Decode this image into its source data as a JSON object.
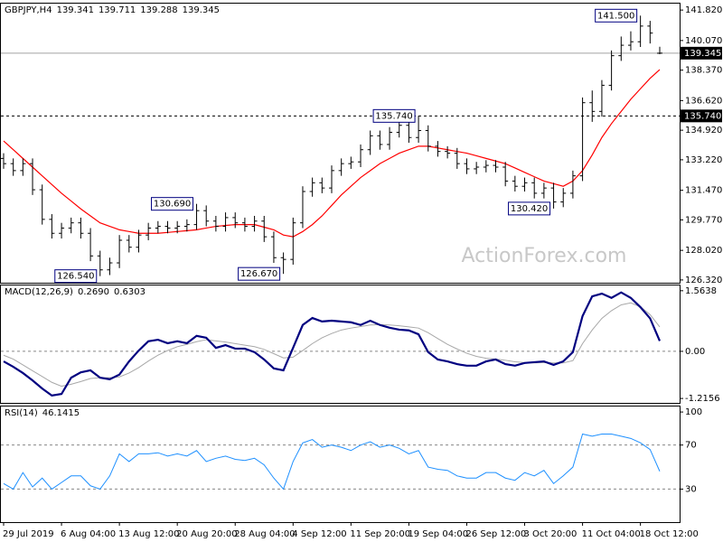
{
  "chart_data": [
    {
      "type": "ohlc",
      "title": "GBPJPY,H4",
      "color": "#000000",
      "open": [
        133.3,
        133.0,
        132.6,
        133.0,
        131.5,
        129.8,
        129.0,
        129.3,
        129.6,
        129.0,
        127.7,
        126.9,
        127.3,
        128.6,
        128.2,
        128.9,
        129.3,
        129.4,
        129.3,
        129.4,
        129.5,
        130.3,
        129.7,
        129.4,
        129.9,
        129.6,
        129.4,
        129.7,
        128.8,
        127.6,
        127.5,
        129.6,
        131.4,
        131.9,
        131.6,
        132.6,
        133.0,
        133.1,
        133.8,
        134.6,
        134.1,
        134.8,
        135.2,
        134.5,
        134.9,
        134.0,
        133.7,
        133.6,
        133.0,
        132.7,
        132.8,
        132.9,
        132.8,
        132.0,
        131.7,
        131.9,
        131.3,
        131.6,
        130.8,
        131.3,
        132.3,
        136.5,
        136.0,
        137.5,
        139.2,
        139.8,
        140.0,
        140.9,
        139.341
      ],
      "high": [
        133.6,
        133.3,
        133.3,
        133.3,
        131.8,
        130.1,
        129.6,
        129.9,
        129.9,
        129.3,
        128.0,
        127.6,
        128.9,
        128.9,
        129.2,
        129.6,
        129.7,
        129.7,
        129.7,
        129.8,
        130.69,
        130.6,
        130.0,
        130.2,
        130.2,
        129.9,
        130.0,
        130.0,
        129.1,
        127.9,
        129.9,
        131.7,
        132.2,
        132.2,
        132.9,
        133.3,
        133.4,
        134.1,
        134.9,
        134.9,
        135.1,
        135.5,
        135.5,
        135.74,
        135.2,
        134.3,
        134.0,
        133.9,
        133.3,
        133.1,
        133.2,
        133.2,
        133.1,
        132.3,
        132.2,
        132.2,
        131.9,
        131.9,
        131.6,
        132.6,
        136.8,
        137.2,
        137.8,
        139.5,
        140.3,
        140.6,
        141.5,
        141.2,
        139.711
      ],
      "low": [
        132.7,
        132.3,
        132.3,
        131.2,
        129.5,
        128.7,
        128.7,
        129.0,
        128.7,
        127.4,
        126.54,
        126.6,
        127.0,
        127.9,
        127.9,
        128.6,
        129.0,
        129.0,
        129.0,
        129.1,
        129.2,
        129.4,
        129.1,
        129.1,
        129.3,
        129.1,
        129.1,
        128.5,
        127.3,
        126.67,
        127.2,
        129.3,
        131.1,
        131.3,
        131.3,
        132.3,
        132.7,
        132.8,
        133.5,
        133.8,
        133.8,
        134.5,
        134.2,
        134.2,
        133.7,
        133.4,
        133.3,
        132.7,
        132.4,
        132.4,
        132.5,
        132.5,
        131.7,
        131.4,
        131.4,
        131.0,
        131.0,
        130.42,
        130.5,
        131.0,
        132.0,
        135.4,
        135.7,
        137.2,
        138.9,
        139.5,
        139.7,
        139.9,
        139.288
      ],
      "close": [
        133.0,
        132.6,
        133.0,
        131.5,
        129.8,
        129.0,
        129.3,
        129.6,
        129.0,
        127.7,
        126.9,
        127.3,
        128.6,
        128.2,
        128.9,
        129.3,
        129.4,
        129.3,
        129.4,
        129.5,
        130.3,
        129.7,
        129.4,
        129.9,
        129.6,
        129.4,
        129.7,
        128.8,
        127.6,
        127.5,
        129.6,
        131.4,
        131.9,
        131.6,
        132.6,
        133.0,
        133.1,
        133.8,
        134.6,
        134.1,
        134.8,
        135.2,
        134.5,
        134.9,
        134.0,
        133.7,
        133.6,
        133.0,
        132.7,
        132.8,
        132.9,
        132.8,
        132.0,
        131.7,
        131.9,
        131.3,
        131.6,
        130.8,
        131.3,
        132.3,
        136.5,
        136.0,
        137.5,
        139.2,
        139.8,
        140.0,
        140.9,
        140.5,
        139.345
      ],
      "ma": {
        "color": "#ff0000",
        "values": [
          134.3,
          133.8,
          133.3,
          132.8,
          132.3,
          131.8,
          131.3,
          130.85,
          130.4,
          130.0,
          129.6,
          129.4,
          129.2,
          129.1,
          129.0,
          129.0,
          129.0,
          129.05,
          129.1,
          129.15,
          129.2,
          129.3,
          129.4,
          129.45,
          129.5,
          129.5,
          129.5,
          129.35,
          129.2,
          128.9,
          128.8,
          129.1,
          129.5,
          130.0,
          130.6,
          131.2,
          131.7,
          132.2,
          132.6,
          133.0,
          133.3,
          133.6,
          133.8,
          134.0,
          134.0,
          133.9,
          133.8,
          133.7,
          133.6,
          133.45,
          133.3,
          133.15,
          133.0,
          132.75,
          132.5,
          132.25,
          132.0,
          131.85,
          131.7,
          132.0,
          132.6,
          133.5,
          134.5,
          135.3,
          136.0,
          136.7,
          137.3,
          137.9,
          138.4
        ]
      },
      "ylim": [
        126.16,
        142.19
      ],
      "yticks": [
        {
          "value": 141.82,
          "label": "141.820"
        },
        {
          "value": 140.07,
          "label": "140.070"
        },
        {
          "value": 138.37,
          "label": "138.370"
        },
        {
          "value": 136.62,
          "label": "136.620"
        },
        {
          "value": 134.92,
          "label": "134.920"
        },
        {
          "value": 133.22,
          "label": "133.220"
        },
        {
          "value": 131.47,
          "label": "131.470"
        },
        {
          "value": 129.77,
          "label": "129.770"
        },
        {
          "value": 128.02,
          "label": "128.020"
        },
        {
          "value": 126.32,
          "label": "126.320"
        }
      ],
      "annotations": [
        {
          "value": 141.5,
          "label": "141.500"
        },
        {
          "value": 135.74,
          "label": "135.740"
        },
        {
          "value": 130.69,
          "label": "130.690"
        },
        {
          "value": 130.42,
          "label": "130.420"
        },
        {
          "value": 126.54,
          "label": "126.540"
        },
        {
          "value": 126.67,
          "label": "126.670"
        }
      ],
      "last_price": {
        "value": 139.345,
        "label": "139.345"
      },
      "level": {
        "value": 135.74,
        "label": "135.740"
      },
      "watermark": "ActionForex.com"
    },
    {
      "type": "macd",
      "title": "MACD(12,26,9)",
      "series": [
        {
          "color": "#000080",
          "values": [
            -0.26,
            -0.4,
            -0.56,
            -0.75,
            -0.96,
            -1.14,
            -1.1,
            -0.68,
            -0.54,
            -0.49,
            -0.68,
            -0.72,
            -0.6,
            -0.26,
            0.02,
            0.26,
            0.3,
            0.21,
            0.26,
            0.21,
            0.4,
            0.35,
            0.09,
            0.16,
            0.07,
            0.07,
            -0.02,
            -0.21,
            -0.44,
            -0.49,
            0.09,
            0.68,
            0.86,
            0.77,
            0.79,
            0.77,
            0.75,
            0.68,
            0.79,
            0.68,
            0.61,
            0.56,
            0.54,
            0.44,
            -0.02,
            -0.21,
            -0.26,
            -0.33,
            -0.37,
            -0.37,
            -0.26,
            -0.21,
            -0.33,
            -0.37,
            -0.3,
            -0.28,
            -0.26,
            -0.35,
            -0.26,
            -0.02,
            0.91,
            1.42,
            1.49,
            1.38,
            1.52,
            1.38,
            1.14,
            0.85,
            0.269
          ]
        },
        {
          "color": "#a8a8a8",
          "values": [
            -0.1,
            -0.2,
            -0.35,
            -0.5,
            -0.65,
            -0.8,
            -0.9,
            -0.85,
            -0.78,
            -0.7,
            -0.68,
            -0.68,
            -0.66,
            -0.56,
            -0.42,
            -0.25,
            -0.1,
            0.02,
            0.12,
            0.18,
            0.25,
            0.3,
            0.27,
            0.24,
            0.2,
            0.16,
            0.12,
            0.05,
            -0.06,
            -0.17,
            -0.15,
            0.02,
            0.2,
            0.35,
            0.46,
            0.55,
            0.6,
            0.64,
            0.68,
            0.69,
            0.68,
            0.66,
            0.63,
            0.6,
            0.48,
            0.33,
            0.18,
            0.06,
            -0.05,
            -0.13,
            -0.18,
            -0.2,
            -0.23,
            -0.27,
            -0.29,
            -0.3,
            -0.29,
            -0.3,
            -0.3,
            -0.24,
            0.2,
            0.55,
            0.85,
            1.05,
            1.2,
            1.25,
            1.15,
            0.95,
            0.6303
          ]
        }
      ],
      "readout": [
        {
          "value": 0.269,
          "label": "0.2690"
        },
        0.6303
      ],
      "ylim": [
        -1.33,
        1.7
      ],
      "yticks": [
        1.5638,
        {
          "value": 0,
          "label": "0.00"
        },
        -1.2156
      ],
      "levels": [
        0
      ]
    },
    {
      "type": "line",
      "title": "RSI(14)",
      "readout": 46.1415,
      "series": [
        {
          "color": "#1e90ff",
          "values": [
            35,
            30,
            45,
            32,
            40,
            30,
            36,
            42,
            42,
            33,
            30,
            42,
            62,
            55,
            62,
            62,
            63,
            60,
            62,
            60,
            65,
            55,
            58,
            60,
            57,
            56,
            58,
            52,
            40,
            30,
            55,
            72,
            75,
            68,
            70,
            68,
            65,
            70,
            73,
            68,
            70,
            67,
            62,
            65,
            50,
            48,
            47,
            42,
            40,
            40,
            45,
            45,
            40,
            38,
            45,
            42,
            47,
            35,
            42,
            50,
            80,
            78,
            80,
            80,
            78,
            76,
            72,
            66,
            46.1415
          ]
        }
      ],
      "ylim": [
        0,
        105
      ],
      "yticks": [
        100,
        70,
        30
      ],
      "levels": [
        70,
        30
      ],
      "categories": [
        "29 Jul 2019",
        null,
        null,
        null,
        null,
        null,
        "6 Aug 04:00",
        null,
        null,
        null,
        null,
        null,
        "13 Aug 12:00",
        null,
        null,
        null,
        null,
        null,
        "20 Aug 20:00",
        null,
        null,
        null,
        null,
        null,
        "28 Aug 04:00",
        null,
        null,
        null,
        null,
        null,
        "4 Sep 12:00",
        null,
        null,
        null,
        null,
        null,
        "11 Sep 20:00",
        null,
        null,
        null,
        null,
        null,
        "19 Sep 04:00",
        null,
        null,
        null,
        null,
        null,
        "26 Sep 12:00",
        null,
        null,
        null,
        null,
        null,
        "3 Oct 20:00",
        null,
        null,
        null,
        null,
        null,
        "11 Oct 04:00",
        null,
        null,
        null,
        null,
        null,
        "18 Oct 12:00",
        null,
        null
      ]
    }
  ]
}
